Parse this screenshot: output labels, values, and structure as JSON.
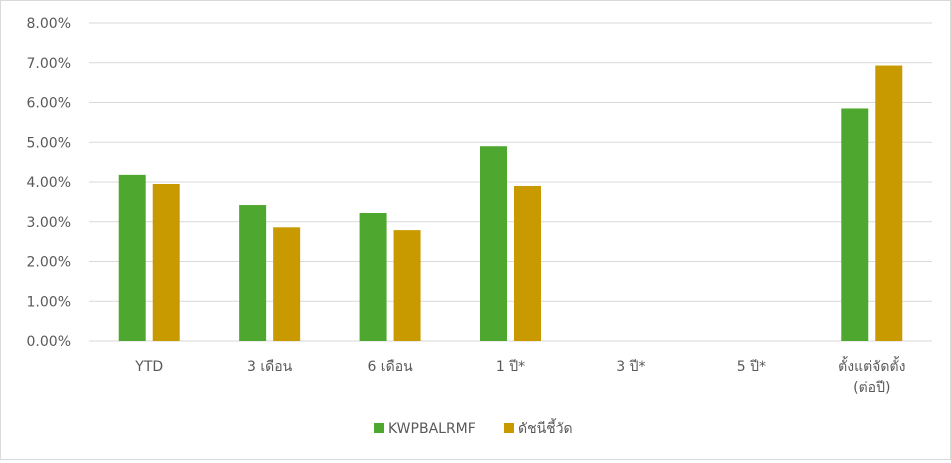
{
  "chart_data": {
    "type": "bar",
    "categories": [
      [
        "YTD"
      ],
      [
        "3 เดือน"
      ],
      [
        "6 เดือน"
      ],
      [
        "1 ปี*"
      ],
      [
        "3 ปี*"
      ],
      [
        "5 ปี*"
      ],
      [
        "ตั้งแต่จัดตั้ง",
        "(ต่อปี)"
      ]
    ],
    "series": [
      {
        "name": "KWPBALRMF",
        "color": "#4ea72e",
        "values": [
          4.18,
          3.42,
          3.22,
          4.9,
          null,
          null,
          5.85
        ]
      },
      {
        "name": "ดัชนีชี้วัด",
        "color": "#c89a00",
        "values": [
          3.95,
          2.86,
          2.79,
          3.9,
          null,
          null,
          6.93
        ]
      }
    ],
    "yticks": [
      "0.00%",
      "1.00%",
      "2.00%",
      "3.00%",
      "4.00%",
      "5.00%",
      "6.00%",
      "7.00%",
      "8.00%"
    ],
    "ylim": [
      0,
      8
    ],
    "grid": true,
    "legend_position": "bottom",
    "title": "",
    "xlabel": "",
    "ylabel": ""
  }
}
